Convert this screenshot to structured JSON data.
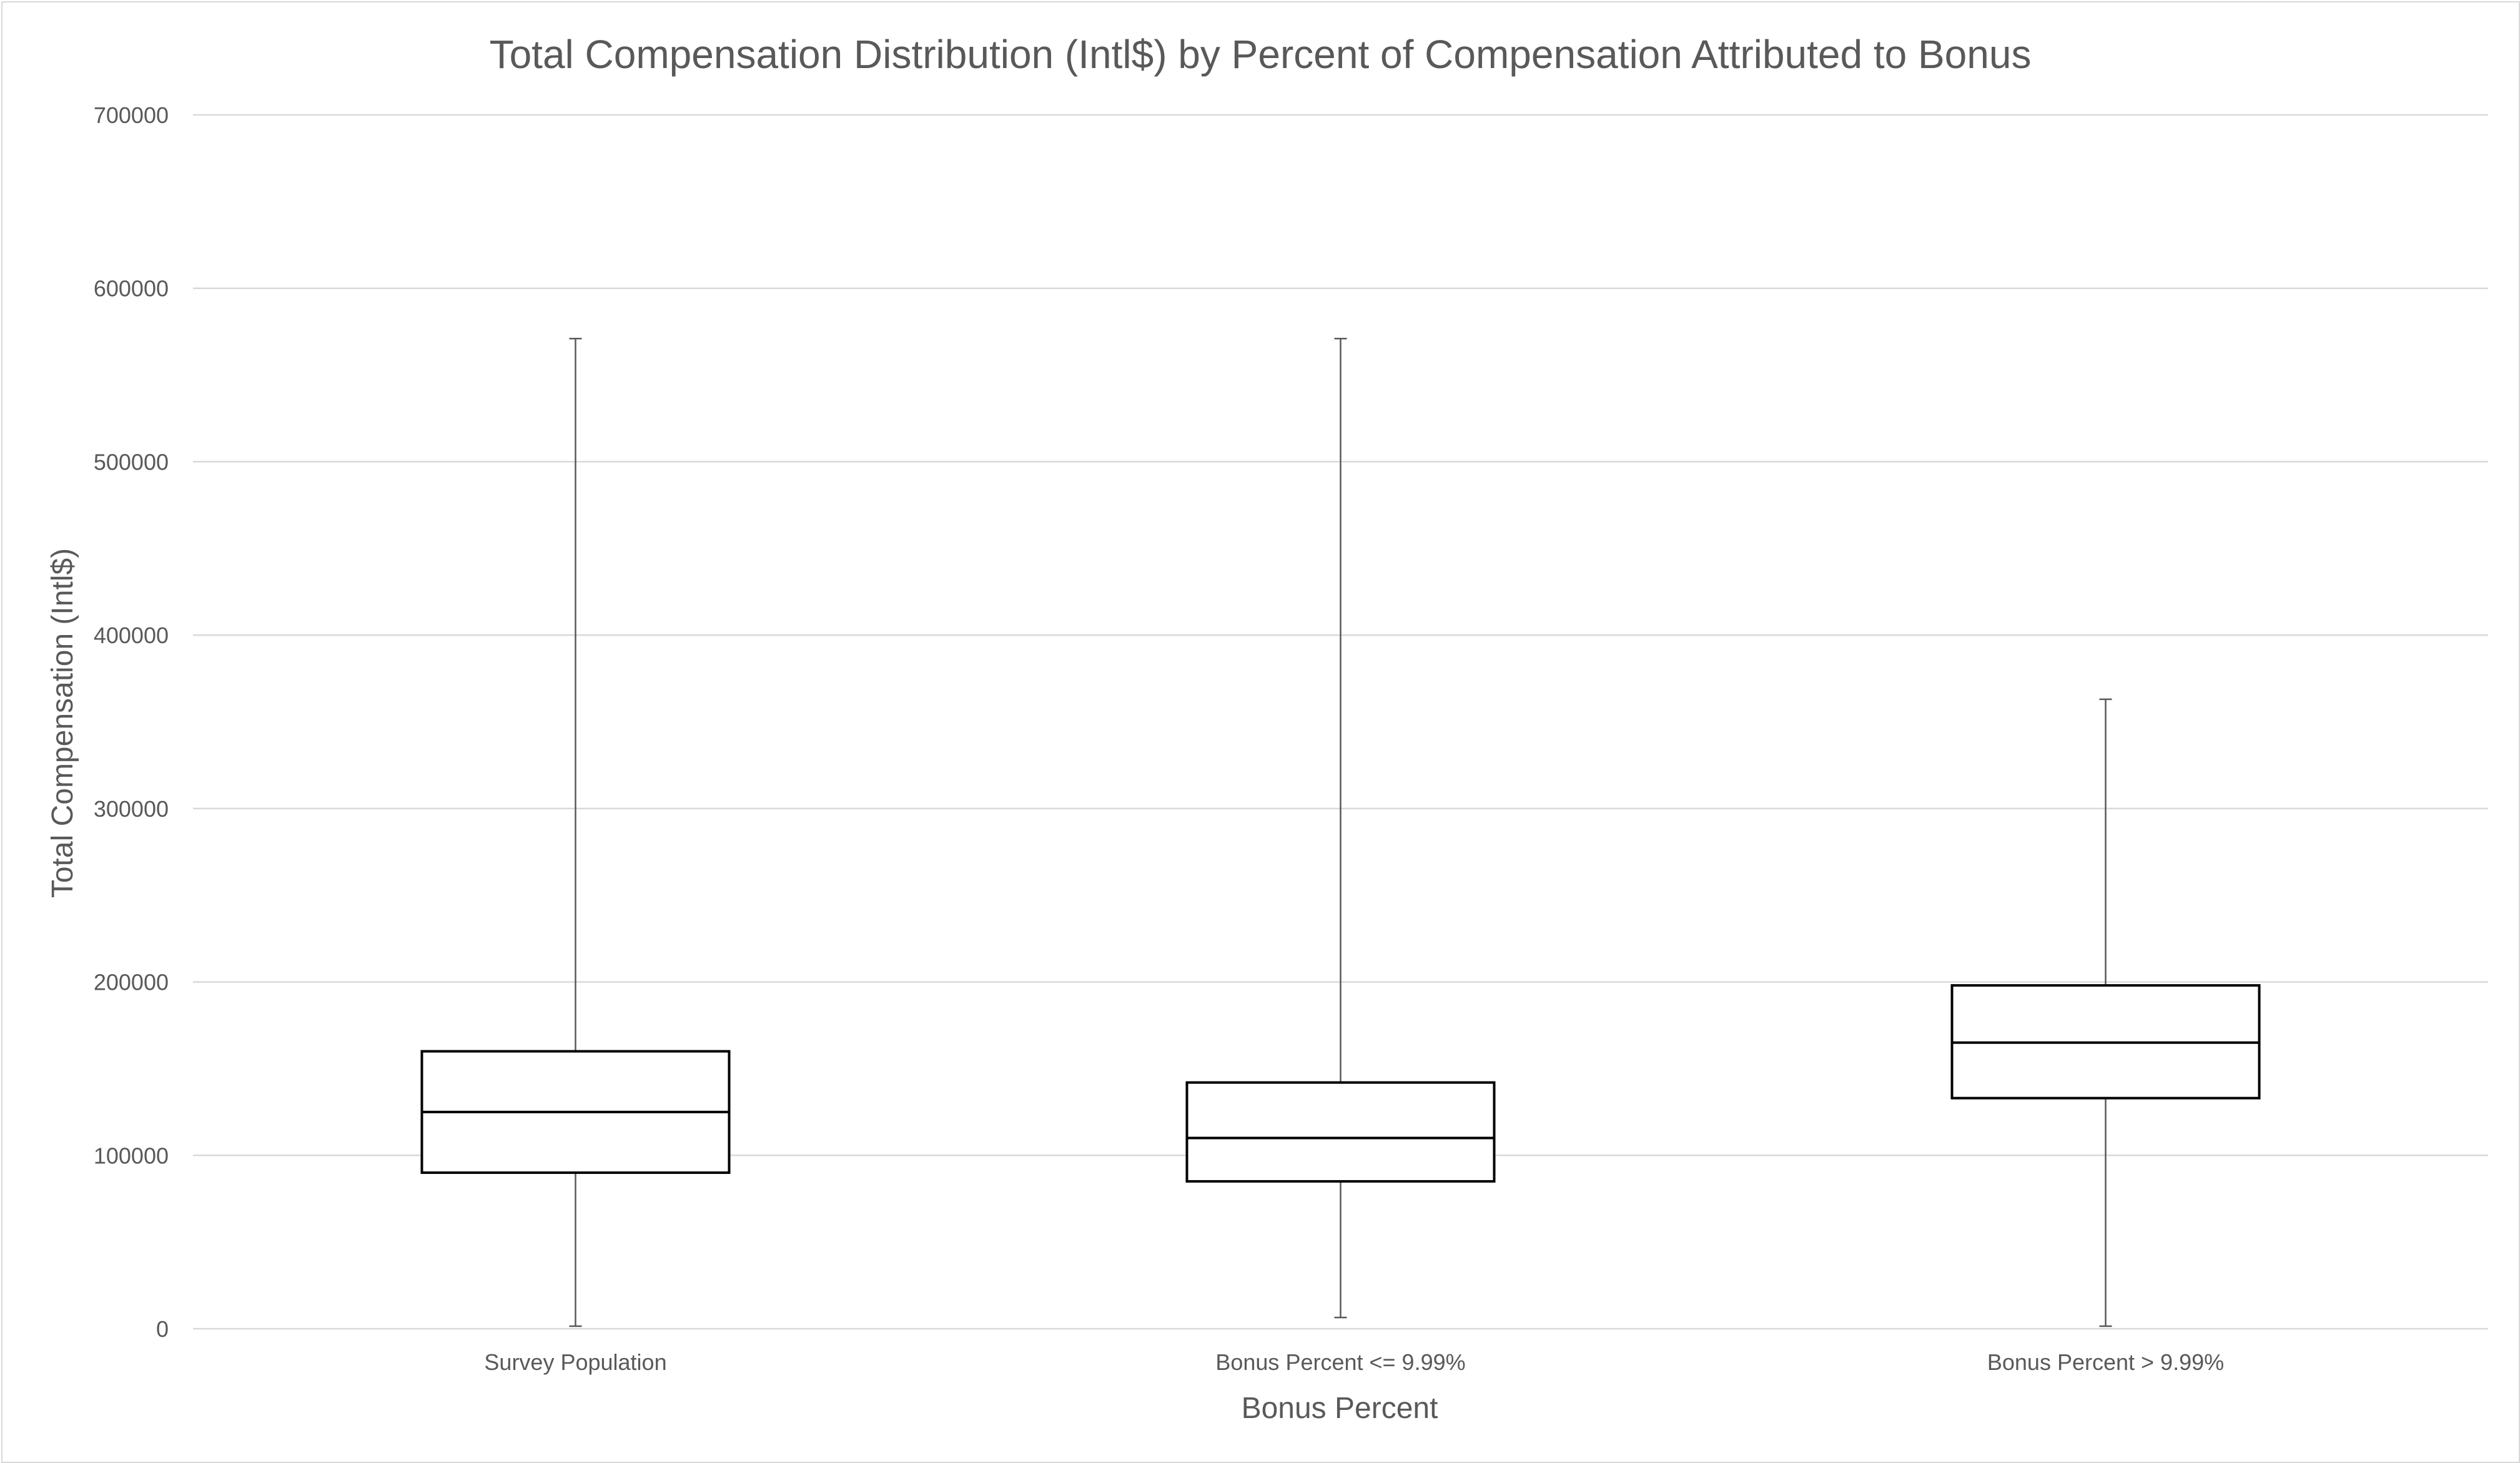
{
  "chart_data": {
    "type": "boxplot",
    "title": "Total Compensation Distribution (Intl$) by Percent of Compensation Attributed to Bonus",
    "xlabel": "Bonus Percent",
    "ylabel": "Total Compensation (Intl$)",
    "ylim": [
      0,
      700000
    ],
    "yticks": [
      0,
      100000,
      200000,
      300000,
      400000,
      500000,
      600000,
      700000
    ],
    "grid": true,
    "categories": [
      "Survey Population",
      "Bonus Percent <= 9.99%",
      "Bonus Percent > 9.99%"
    ],
    "boxes": [
      {
        "category": "Survey Population",
        "min": 1500,
        "q1": 90000,
        "median": 125000,
        "q3": 160000,
        "max": 571000
      },
      {
        "category": "Bonus Percent <= 9.99%",
        "min": 6500,
        "q1": 85000,
        "median": 110000,
        "q3": 142000,
        "max": 571000
      },
      {
        "category": "Bonus Percent > 9.99%",
        "min": 1500,
        "q1": 133000,
        "median": 165000,
        "q3": 198000,
        "max": 363000
      }
    ],
    "colors": {
      "box_stroke": "#000000",
      "whisker": "#595959",
      "grid": "#d9d9d9",
      "text": "#595959"
    }
  }
}
